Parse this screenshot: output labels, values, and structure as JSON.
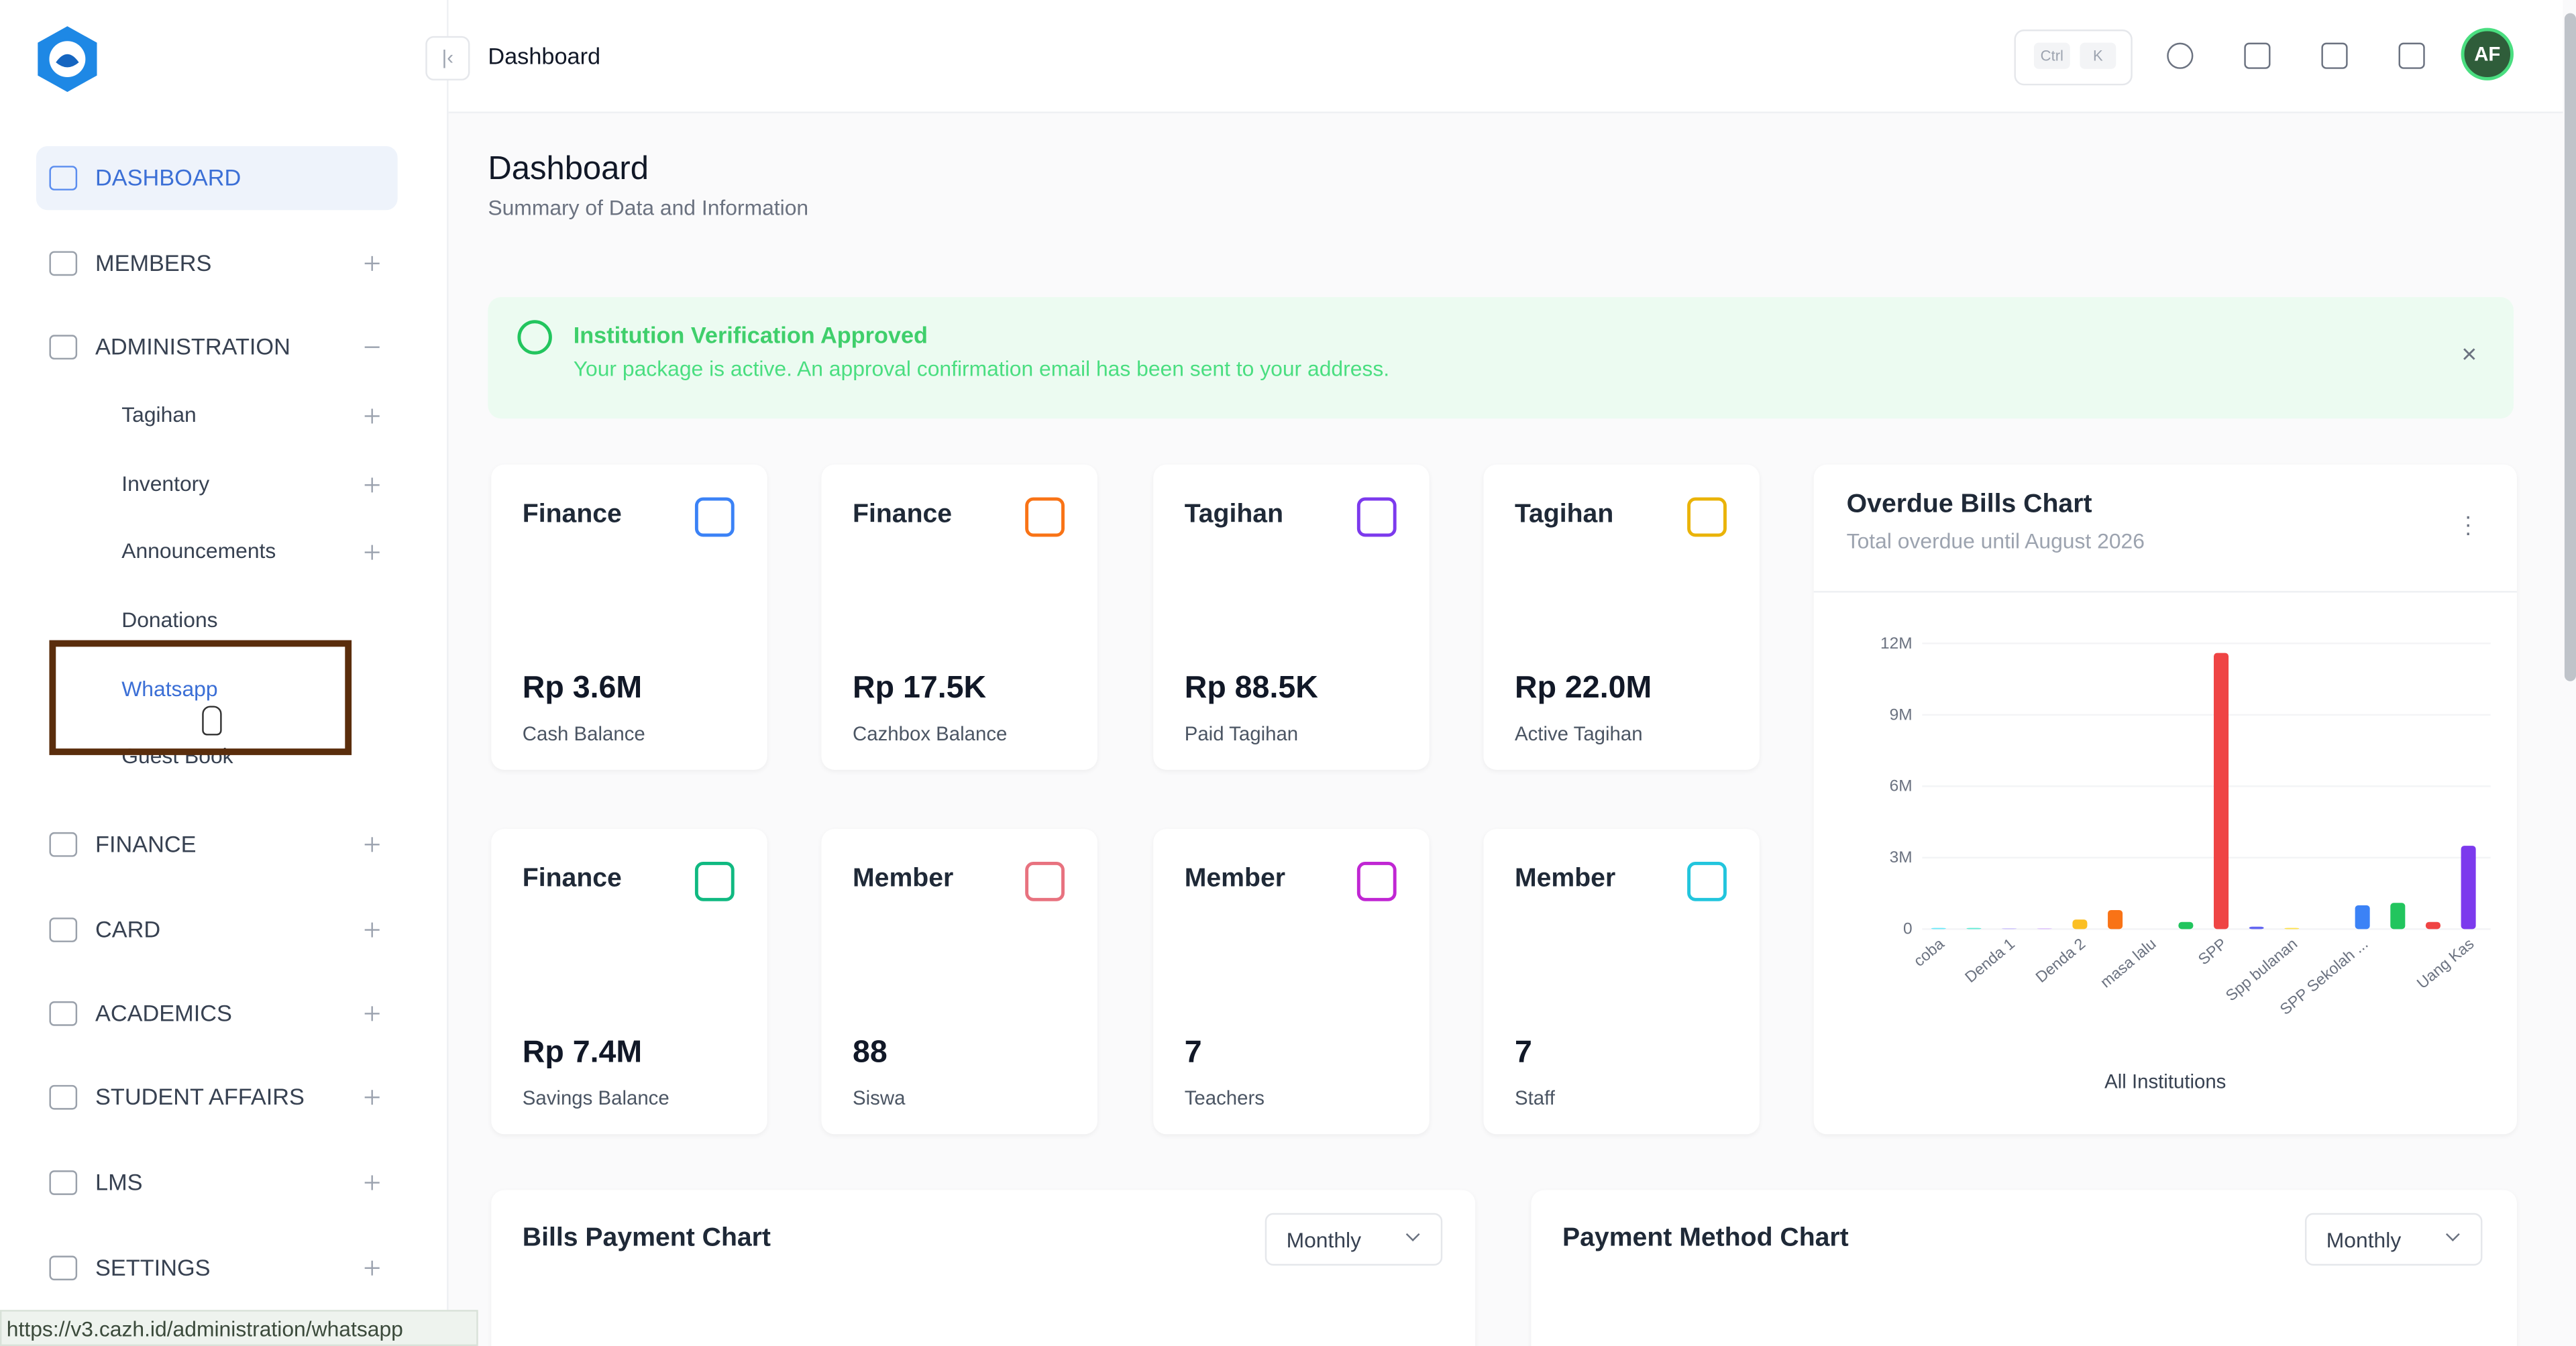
{
  "header": {
    "breadcrumb": "Dashboard",
    "shortcut_keys": [
      "Ctrl",
      "K"
    ],
    "avatar": "AF"
  },
  "sidebar": {
    "items": [
      "DASHBOARD",
      "MEMBERS",
      "ADMINISTRATION",
      "FINANCE",
      "CARD",
      "ACADEMICS",
      "STUDENT AFFAIRS",
      "LMS",
      "SETTINGS"
    ],
    "subitems": [
      "Tagihan",
      "Inventory",
      "Announcements",
      "Donations",
      "Whatsapp",
      "Guest Book"
    ]
  },
  "page": {
    "title": "Dashboard",
    "subtitle": "Summary of Data and Information"
  },
  "alert": {
    "title": "Institution Verification Approved",
    "message": "Your package is active. An approval confirmation email has been sent to your address."
  },
  "cards": [
    {
      "title": "Finance",
      "value": "Rp 3.6M",
      "label": "Cash Balance",
      "icon_color": "#3b82f6"
    },
    {
      "title": "Finance",
      "value": "Rp 17.5K",
      "label": "Cazhbox Balance",
      "icon_color": "#f97316"
    },
    {
      "title": "Tagihan",
      "value": "Rp 88.5K",
      "label": "Paid Tagihan",
      "icon_color": "#7c3aed"
    },
    {
      "title": "Tagihan",
      "value": "Rp 22.0M",
      "label": "Active Tagihan",
      "icon_color": "#eab308"
    },
    {
      "title": "Finance",
      "value": "Rp 7.4M",
      "label": "Savings Balance",
      "icon_color": "#10b981"
    },
    {
      "title": "Member",
      "value": "88",
      "label": "Siswa",
      "icon_color": "#e8727f"
    },
    {
      "title": "Member",
      "value": "7",
      "label": "Teachers",
      "icon_color": "#c026d3"
    },
    {
      "title": "Member",
      "value": "7",
      "label": "Staff",
      "icon_color": "#22c5dd"
    }
  ],
  "overdue_chart": {
    "type": "bar",
    "title": "Overdue Bills Chart",
    "subtitle": "Total overdue until August 2026",
    "xlabel": "All Institutions",
    "categories": [
      "coba",
      null,
      "Denda 1",
      null,
      "Denda 2",
      null,
      "masa lalu",
      null,
      "SPP",
      null,
      "Spp bulanan",
      null,
      "SPP Sekolah ...",
      null,
      null,
      "Uang Kas"
    ],
    "values": [
      50000,
      50000,
      30000,
      30000,
      400000,
      800000,
      0,
      300000,
      11600000,
      100000,
      50000,
      0,
      1000000,
      1100000,
      300000,
      3500000
    ],
    "colors": [
      "#67e8f9",
      "#5eead4",
      "#c4b5fd",
      "#d8b4fe",
      "#fbbf24",
      "#f97316",
      "#a3a3a3",
      "#22c55e",
      "#ef4444",
      "#6366f1",
      "#fde047",
      "#a3a3a3",
      "#3b82f6",
      "#22c55e",
      "#ef4444",
      "#7c3aed"
    ],
    "ylim": [
      0,
      12000000
    ],
    "yticks": [
      0,
      {
        "value": 3000000,
        "label": "3M"
      },
      {
        "value": 6000000,
        "label": "6M"
      },
      {
        "value": 9000000,
        "label": "9M"
      },
      {
        "value": 12000000,
        "label": "12M"
      }
    ]
  },
  "bills_chart": {
    "title": "Bills Payment Chart",
    "period": "Monthly"
  },
  "payment_chart": {
    "title": "Payment Method Chart",
    "period": "Monthly"
  },
  "status_url": "https://v3.cazh.id/administration/whatsapp"
}
